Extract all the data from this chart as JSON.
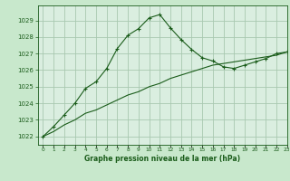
{
  "title": "Graphe pression niveau de la mer (hPa)",
  "bg_color": "#c8e8cc",
  "plot_bg_color": "#daeee0",
  "line_color": "#1a5c1a",
  "grid_color": "#a8c8b0",
  "xlim": [
    -0.5,
    23
  ],
  "ylim": [
    1021.5,
    1029.9
  ],
  "yticks": [
    1022,
    1023,
    1024,
    1025,
    1026,
    1027,
    1028,
    1029
  ],
  "xticks": [
    0,
    1,
    2,
    3,
    4,
    5,
    6,
    7,
    8,
    9,
    10,
    11,
    12,
    13,
    14,
    15,
    16,
    17,
    18,
    19,
    20,
    21,
    22,
    23
  ],
  "series1_x": [
    0,
    1,
    2,
    3,
    4,
    5,
    6,
    7,
    8,
    9,
    10,
    11,
    12,
    13,
    14,
    15,
    16,
    17,
    18,
    19,
    20,
    21,
    22,
    23
  ],
  "series1_y": [
    1022.0,
    1022.6,
    1023.3,
    1024.0,
    1024.9,
    1025.3,
    1026.1,
    1027.3,
    1028.1,
    1028.5,
    1029.15,
    1029.35,
    1028.55,
    1027.85,
    1027.25,
    1026.75,
    1026.55,
    1026.2,
    1026.1,
    1026.3,
    1026.5,
    1026.7,
    1027.0,
    1027.1
  ],
  "series2_x": [
    0,
    1,
    2,
    3,
    4,
    5,
    6,
    7,
    8,
    9,
    10,
    11,
    12,
    13,
    14,
    15,
    16,
    17,
    18,
    19,
    20,
    21,
    22,
    23
  ],
  "series2_y": [
    1022.0,
    1022.3,
    1022.7,
    1023.0,
    1023.4,
    1023.6,
    1023.9,
    1024.2,
    1024.5,
    1024.7,
    1025.0,
    1025.2,
    1025.5,
    1025.7,
    1025.9,
    1026.1,
    1026.3,
    1026.4,
    1026.5,
    1026.6,
    1026.7,
    1026.8,
    1026.9,
    1027.1
  ]
}
